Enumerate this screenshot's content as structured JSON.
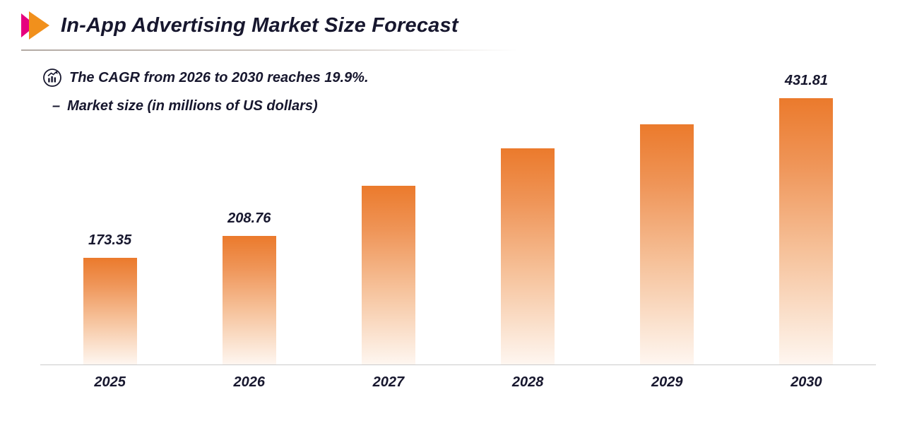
{
  "header": {
    "title": "In-App Advertising Market Size Forecast"
  },
  "subtitle": {
    "icon": "trend-chart-icon",
    "text": "The CAGR from 2026 to 2030 reaches 19.9%."
  },
  "legend": {
    "dash": "–",
    "label": "Market size (in millions of US dollars)"
  },
  "colors": {
    "accent_orange": "#ED7D31",
    "accent_magenta": "#E6007E",
    "text_dark": "#17172E",
    "bar_gradient_top": "#EB7A2C",
    "bar_gradient_bottom": "#FEF6F0",
    "axis_line": "#CBCBCB"
  },
  "chart_data": {
    "type": "bar",
    "title": "In-App Advertising Market Size Forecast",
    "categories": [
      "2025",
      "2026",
      "2027",
      "2028",
      "2029",
      "2030"
    ],
    "values": [
      173.35,
      208.76,
      290,
      350,
      390,
      431.81
    ],
    "value_labels": [
      "173.35",
      "208.76",
      null,
      null,
      null,
      "431.81"
    ],
    "value_labels_note": "only 2025, 2026 and 2030 bars show data labels; middle values estimated from bar heights",
    "xlabel": "",
    "ylabel": "Market size (in millions of US dollars)",
    "ylim": [
      0,
      440
    ],
    "grid": false,
    "legend_position": "top-left",
    "bar_color": "orange gradient fading to white at base"
  }
}
